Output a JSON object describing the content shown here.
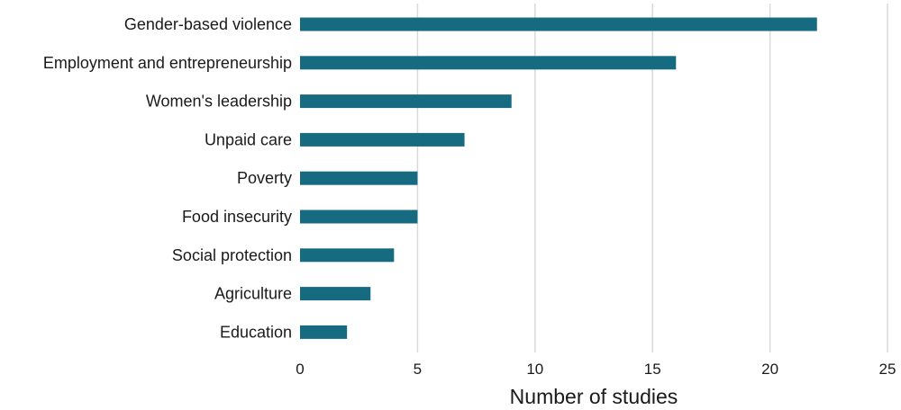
{
  "chart_data": {
    "type": "bar",
    "orientation": "horizontal",
    "categories": [
      "Gender-based violence",
      "Employment and entrepreneurship",
      "Women's leadership",
      "Unpaid care",
      "Poverty",
      "Food insecurity",
      "Social protection",
      "Agriculture",
      "Education"
    ],
    "values": [
      22,
      16,
      9,
      7,
      5,
      5,
      4,
      3,
      2
    ],
    "xlabel": "Number of studies",
    "ylabel": "",
    "xlim": [
      0,
      25
    ],
    "xticks": [
      0,
      5,
      10,
      15,
      20,
      25
    ],
    "grid": "vertical",
    "bar_color": "#176b80"
  }
}
